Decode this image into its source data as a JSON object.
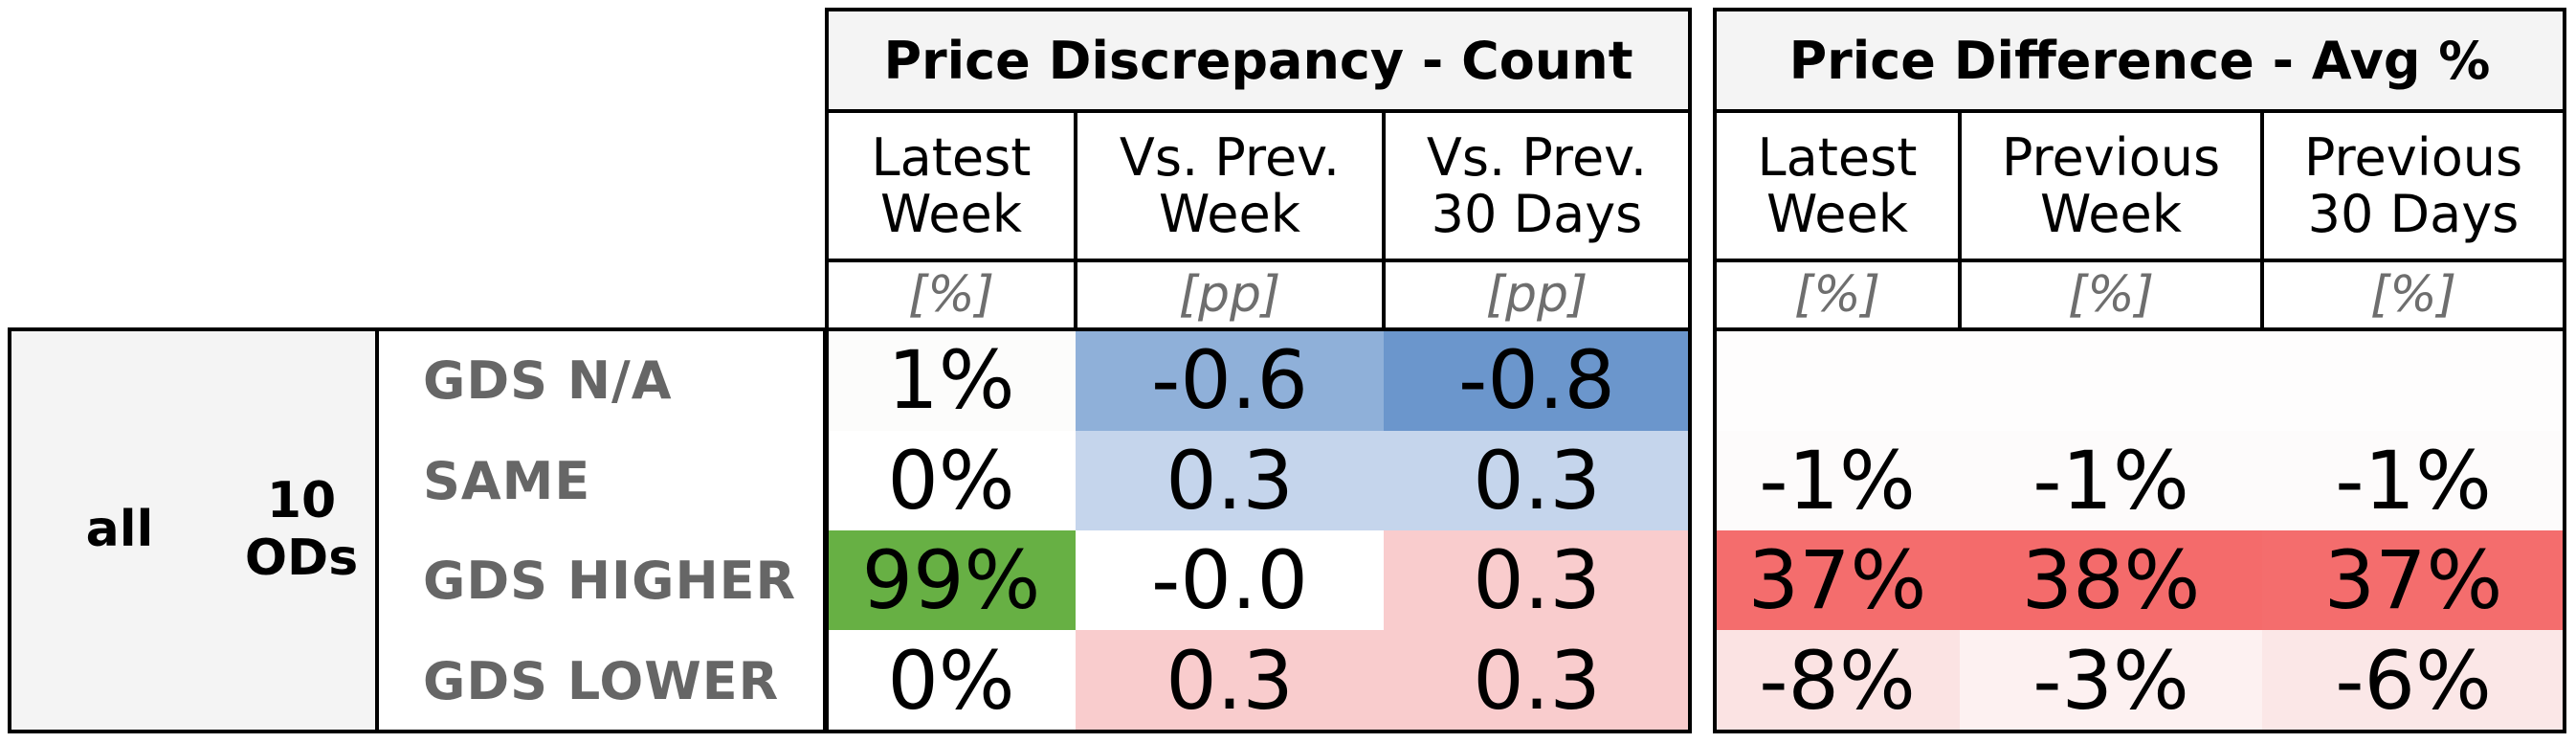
{
  "chart_data": {
    "type": "table",
    "groups": [
      {
        "title": "Price Discrepancy - Count",
        "columns": [
          {
            "label_lines": [
              "Latest",
              "Week"
            ],
            "unit": "[%]"
          },
          {
            "label_lines": [
              "Vs. Prev.",
              "Week"
            ],
            "unit": "[pp]"
          },
          {
            "label_lines": [
              "Vs. Prev.",
              "30 Days"
            ],
            "unit": "[pp]"
          }
        ]
      },
      {
        "title": "Price Difference - Avg %",
        "columns": [
          {
            "label_lines": [
              "Latest",
              "Week"
            ],
            "unit": "[%]"
          },
          {
            "label_lines": [
              "Previous",
              "Week"
            ],
            "unit": "[%]"
          },
          {
            "label_lines": [
              "Previous",
              "30 Days"
            ],
            "unit": "[%]"
          }
        ]
      }
    ],
    "row_group": {
      "label": "all",
      "sublabel_lines": [
        "10",
        "ODs"
      ]
    },
    "rows": [
      {
        "label": "GDS N/A",
        "cells": [
          {
            "text": "1%",
            "color": "#fcfcfb"
          },
          {
            "text": "-0.6",
            "color": "#8fb0d9"
          },
          {
            "text": "-0.8",
            "color": "#6b96cc"
          },
          {
            "text": "",
            "color": "#fefdfd"
          },
          {
            "text": "",
            "color": "#fefdfd"
          },
          {
            "text": "",
            "color": "#fefdfd"
          }
        ]
      },
      {
        "label": "SAME",
        "cells": [
          {
            "text": "0%",
            "color": "#ffffff"
          },
          {
            "text": "0.3",
            "color": "#c5d5ec"
          },
          {
            "text": "0.3",
            "color": "#c5d5ec"
          },
          {
            "text": "-1%",
            "color": "#fdfbfb"
          },
          {
            "text": "-1%",
            "color": "#fdfbfb"
          },
          {
            "text": "-1%",
            "color": "#fdfbfb"
          }
        ]
      },
      {
        "label": "GDS HIGHER",
        "cells": [
          {
            "text": "99%",
            "color": "#67b044"
          },
          {
            "text": "-0.0",
            "color": "#ffffff"
          },
          {
            "text": "0.3",
            "color": "#f9cccd"
          },
          {
            "text": "37%",
            "color": "#f46d6d"
          },
          {
            "text": "38%",
            "color": "#f46b6b"
          },
          {
            "text": "37%",
            "color": "#f46d6d"
          }
        ]
      },
      {
        "label": "GDS LOWER",
        "cells": [
          {
            "text": "0%",
            "color": "#ffffff"
          },
          {
            "text": "0.3",
            "color": "#f9cccd"
          },
          {
            "text": "0.3",
            "color": "#f9cccd"
          },
          {
            "text": "-8%",
            "color": "#fbe3e3"
          },
          {
            "text": "-3%",
            "color": "#fdf1f1"
          },
          {
            "text": "-6%",
            "color": "#fbe7e7"
          }
        ]
      }
    ]
  }
}
